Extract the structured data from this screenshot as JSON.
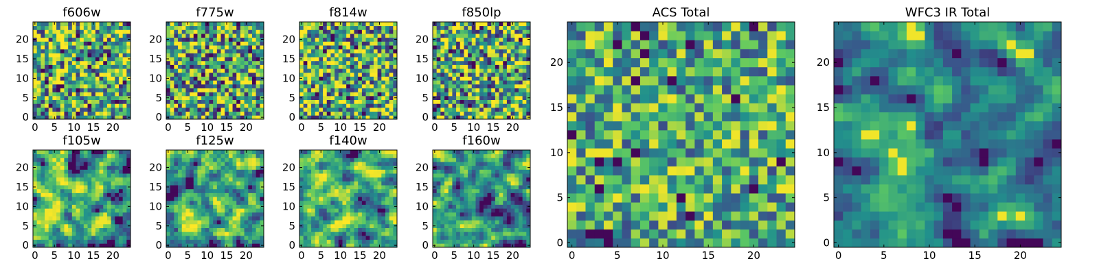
{
  "figure": {
    "chart_data": [
      {
        "type": "heatmap",
        "title": "f606w",
        "grid_size": 25,
        "seed": 11,
        "smooth": 0,
        "bias": 0.62,
        "noise": 0.55,
        "ticks": [
          0,
          5,
          10,
          15,
          20
        ],
        "ylim": [
          0,
          24
        ],
        "xlim": [
          0,
          24
        ]
      },
      {
        "type": "heatmap",
        "title": "f775w",
        "grid_size": 25,
        "seed": 23,
        "smooth": 0,
        "bias": 0.6,
        "noise": 0.55,
        "ticks": [
          0,
          5,
          10,
          15,
          20
        ],
        "ylim": [
          0,
          24
        ],
        "xlim": [
          0,
          24
        ]
      },
      {
        "type": "heatmap",
        "title": "f814w",
        "grid_size": 25,
        "seed": 37,
        "smooth": 0,
        "bias": 0.62,
        "noise": 0.55,
        "ticks": [
          0,
          5,
          10,
          15,
          20
        ],
        "ylim": [
          0,
          24
        ],
        "xlim": [
          0,
          24
        ]
      },
      {
        "type": "heatmap",
        "title": "f850lp",
        "grid_size": 25,
        "seed": 41,
        "smooth": 0,
        "bias": 0.6,
        "noise": 0.55,
        "ticks": [
          0,
          5,
          10,
          15,
          20
        ],
        "ylim": [
          0,
          24
        ],
        "xlim": [
          0,
          24
        ]
      },
      {
        "type": "heatmap",
        "title": "f105w",
        "grid_size": 25,
        "seed": 53,
        "smooth": 1,
        "bias": 0.62,
        "noise": 0.45,
        "ticks": [
          0,
          5,
          10,
          15,
          20
        ],
        "ylim": [
          0,
          24
        ],
        "xlim": [
          0,
          24
        ]
      },
      {
        "type": "heatmap",
        "title": "f125w",
        "grid_size": 25,
        "seed": 67,
        "smooth": 1,
        "bias": 0.6,
        "noise": 0.45,
        "ticks": [
          0,
          5,
          10,
          15,
          20
        ],
        "ylim": [
          0,
          24
        ],
        "xlim": [
          0,
          24
        ]
      },
      {
        "type": "heatmap",
        "title": "f140w",
        "grid_size": 25,
        "seed": 71,
        "smooth": 1,
        "bias": 0.6,
        "noise": 0.45,
        "ticks": [
          0,
          5,
          10,
          15,
          20
        ],
        "ylim": [
          0,
          24
        ],
        "xlim": [
          0,
          24
        ]
      },
      {
        "type": "heatmap",
        "title": "f160w",
        "grid_size": 25,
        "seed": 83,
        "smooth": 1,
        "bias": 0.52,
        "noise": 0.45,
        "ticks": [
          0,
          5,
          10,
          15,
          20
        ],
        "ylim": [
          0,
          24
        ],
        "xlim": [
          0,
          24
        ]
      },
      {
        "type": "heatmap",
        "title": "ACS Total",
        "grid_size": 25,
        "seed": 97,
        "smooth": 0,
        "bias": 0.6,
        "noise": 0.4,
        "ticks": [
          0,
          5,
          10,
          15,
          20
        ],
        "ylim": [
          0,
          24
        ],
        "xlim": [
          0,
          24
        ]
      },
      {
        "type": "heatmap",
        "title": "WFC3 IR Total",
        "grid_size": 25,
        "seed": 101,
        "smooth": 1,
        "bias": 0.46,
        "noise": 0.3,
        "ticks": [
          0,
          5,
          10,
          15,
          20
        ],
        "ylim": [
          0,
          24
        ],
        "xlim": [
          0,
          24
        ]
      }
    ],
    "colormap": [
      "#440154",
      "#3b528b",
      "#21918c",
      "#5ec962",
      "#fde725"
    ]
  }
}
